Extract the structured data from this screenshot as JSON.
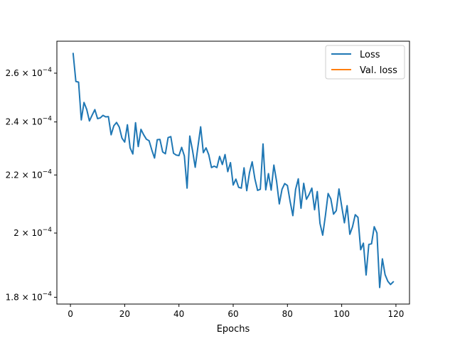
{
  "chart_data": {
    "type": "line",
    "title": "",
    "xlabel": "Epochs",
    "ylabel": "",
    "xlim": [
      -5,
      125
    ],
    "ylim": [
      0.000178,
      0.000274
    ],
    "yscale": "log",
    "x_ticks": [
      0,
      20,
      40,
      60,
      80,
      100,
      120
    ],
    "x_tick_labels": [
      "0",
      "20",
      "40",
      "60",
      "80",
      "100",
      "120"
    ],
    "y_ticks": [
      {
        "value": 0.00018,
        "mantissa": "1.8",
        "times": "×",
        "base": "10",
        "exp": "−4"
      },
      {
        "value": 0.0002,
        "mantissa": "2",
        "times": "×",
        "base": "10",
        "exp": "−4"
      },
      {
        "value": 0.00022,
        "mantissa": "2.2",
        "times": "×",
        "base": "10",
        "exp": "−4"
      },
      {
        "value": 0.00024,
        "mantissa": "2.4",
        "times": "×",
        "base": "10",
        "exp": "−4"
      },
      {
        "value": 0.00026,
        "mantissa": "2.6",
        "times": "×",
        "base": "10",
        "exp": "−4"
      }
    ],
    "legend": {
      "position": "top-right",
      "entries": [
        {
          "label": "Loss",
          "color": "#1f77b4"
        },
        {
          "label": "Val. loss",
          "color": "#ff7f0e"
        }
      ]
    },
    "series": [
      {
        "name": "Loss",
        "color": "#1f77b4",
        "x": [
          1,
          2,
          3,
          4,
          5,
          6,
          7,
          8,
          9,
          10,
          11,
          12,
          13,
          14,
          15,
          16,
          17,
          18,
          19,
          20,
          21,
          22,
          23,
          24,
          25,
          26,
          27,
          28,
          29,
          30,
          31,
          32,
          33,
          34,
          35,
          36,
          37,
          38,
          39,
          40,
          41,
          42,
          43,
          44,
          45,
          46,
          47,
          48,
          49,
          50,
          51,
          52,
          53,
          54,
          55,
          56,
          57,
          58,
          59,
          60,
          61,
          62,
          63,
          64,
          65,
          66,
          67,
          68,
          69,
          70,
          71,
          72,
          73,
          74,
          75,
          76,
          77,
          78,
          79,
          80,
          81,
          82,
          83,
          84,
          85,
          86,
          87,
          88,
          89,
          90,
          91,
          92,
          93,
          94,
          95,
          96,
          97,
          98,
          99,
          100,
          101,
          102,
          103,
          104,
          105,
          106,
          107,
          108,
          109,
          110,
          111,
          112,
          113,
          114,
          115,
          116,
          117,
          118,
          119
        ],
        "values": [
          0.0002685,
          0.0002565,
          0.0002562,
          0.0002408,
          0.0002478,
          0.000245,
          0.0002404,
          0.0002427,
          0.0002449,
          0.0002413,
          0.0002416,
          0.0002426,
          0.000242,
          0.0002421,
          0.000235,
          0.0002385,
          0.0002398,
          0.000238,
          0.0002337,
          0.0002322,
          0.0002389,
          0.00023,
          0.0002277,
          0.0002397,
          0.0002305,
          0.0002371,
          0.000235,
          0.0002333,
          0.0002327,
          0.0002292,
          0.0002262,
          0.0002331,
          0.0002332,
          0.0002285,
          0.0002278,
          0.0002339,
          0.0002343,
          0.000228,
          0.0002273,
          0.0002271,
          0.0002302,
          0.000227,
          0.0002153,
          0.0002345,
          0.0002291,
          0.0002228,
          0.0002304,
          0.0002381,
          0.0002282,
          0.00023,
          0.0002274,
          0.0002227,
          0.0002232,
          0.0002227,
          0.0002268,
          0.0002238,
          0.0002275,
          0.0002212,
          0.0002245,
          0.0002164,
          0.0002185,
          0.0002156,
          0.0002153,
          0.0002226,
          0.0002144,
          0.0002208,
          0.0002248,
          0.0002186,
          0.0002145,
          0.0002149,
          0.0002315,
          0.0002147,
          0.0002205,
          0.0002146,
          0.0002236,
          0.0002177,
          0.0002098,
          0.0002149,
          0.0002169,
          0.0002162,
          0.0002106,
          0.0002058,
          0.0002148,
          0.0002186,
          0.0002083,
          0.000217,
          0.0002114,
          0.0002131,
          0.0002153,
          0.0002078,
          0.0002141,
          0.0002032,
          0.0001993,
          0.0002058,
          0.0002134,
          0.0002115,
          0.0002063,
          0.0002075,
          0.000215,
          0.000209,
          0.0002034,
          0.0002092,
          0.0001996,
          0.0002021,
          0.0002061,
          0.0002052,
          0.0001946,
          0.0001967,
          0.0001867,
          0.0001963,
          0.0001965,
          0.0002021,
          0.0002,
          0.0001829,
          0.0001917,
          0.0001868,
          0.0001848,
          0.0001838,
          0.0001846
        ]
      },
      {
        "name": "Val. loss",
        "color": "#ff7f0e",
        "x": [],
        "values": []
      }
    ]
  }
}
